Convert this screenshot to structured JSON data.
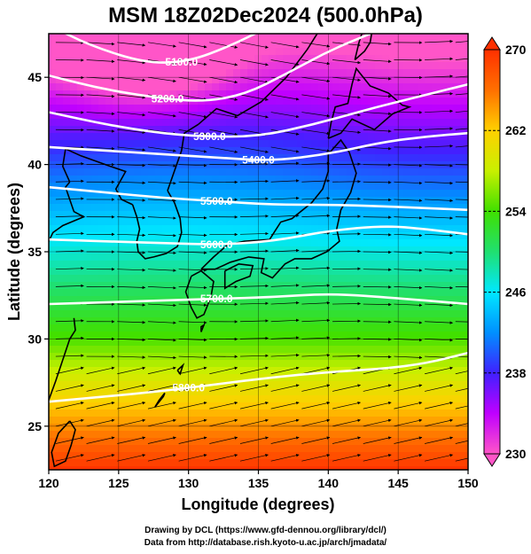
{
  "title": "MSM 18Z02Dec2024 (500.0hPa)",
  "chart_data": {
    "type": "map",
    "title": "MSM 18Z02Dec2024 (500.0hPa)",
    "xlabel": "Longitude (degrees)",
    "ylabel": "Latitude  (degrees)",
    "xlim": [
      120,
      150
    ],
    "ylim": [
      22.5,
      47.5
    ],
    "x_ticks": [
      120,
      125,
      130,
      135,
      140,
      145,
      150
    ],
    "y_ticks": [
      25,
      30,
      35,
      40,
      45
    ],
    "grid": true,
    "colorbar": {
      "range": [
        230,
        270
      ],
      "tick_values": [
        230,
        238,
        246,
        254,
        262,
        270
      ],
      "tick_labels": [
        "230",
        "238",
        "246",
        "254",
        "262",
        "270"
      ],
      "colors": [
        "#ff55c8",
        "#c000ff",
        "#4020ff",
        "#0090ff",
        "#00e8ff",
        "#20e070",
        "#40e000",
        "#c8f000",
        "#ffd000",
        "#ff7000",
        "#ff3000"
      ]
    },
    "contours": [
      {
        "value": 5100.0,
        "label": "5100.0",
        "points": [
          [
            120,
            48.0
          ],
          [
            123,
            46.8
          ],
          [
            127,
            45.8
          ],
          [
            130,
            45.9
          ],
          [
            133,
            46.8
          ],
          [
            136,
            48.0
          ]
        ]
      },
      {
        "value": 5200.0,
        "label": "5200.0",
        "points": [
          [
            120,
            45.1
          ],
          [
            124,
            44.3
          ],
          [
            128,
            43.8
          ],
          [
            131,
            43.6
          ],
          [
            134,
            44.0
          ],
          [
            137,
            45.2
          ],
          [
            140,
            46.5
          ],
          [
            143,
            47.5
          ]
        ]
      },
      {
        "value": 5300.0,
        "label": "5300.0",
        "points": [
          [
            120,
            43.0
          ],
          [
            124,
            42.3
          ],
          [
            128,
            41.8
          ],
          [
            131,
            41.6
          ],
          [
            135,
            41.6
          ],
          [
            139,
            42.3
          ],
          [
            143,
            43.2
          ],
          [
            147,
            44.0
          ],
          [
            150,
            44.6
          ]
        ]
      },
      {
        "value": 5400.0,
        "label": "5400.0",
        "points": [
          [
            120,
            41.0
          ],
          [
            124,
            40.8
          ],
          [
            128,
            40.6
          ],
          [
            132,
            40.4
          ],
          [
            136,
            40.2
          ],
          [
            140,
            40.6
          ],
          [
            144,
            41.3
          ],
          [
            147,
            41.6
          ],
          [
            150,
            41.8
          ]
        ]
      },
      {
        "value": 5500.0,
        "label": "5500.0",
        "points": [
          [
            120,
            38.7
          ],
          [
            124,
            38.4
          ],
          [
            128,
            38.1
          ],
          [
            132,
            37.9
          ],
          [
            136,
            37.7
          ],
          [
            140,
            37.7
          ],
          [
            144,
            37.6
          ],
          [
            147,
            37.5
          ],
          [
            150,
            37.4
          ]
        ]
      },
      {
        "value": 5600.0,
        "label": "5600.0",
        "points": [
          [
            120,
            35.7
          ],
          [
            124,
            35.6
          ],
          [
            128,
            35.5
          ],
          [
            132,
            35.4
          ],
          [
            136,
            35.6
          ],
          [
            140,
            36.2
          ],
          [
            144,
            36.5
          ],
          [
            147,
            36.3
          ],
          [
            150,
            36.0
          ]
        ]
      },
      {
        "value": 5700.0,
        "label": "5700.0",
        "points": [
          [
            120,
            32.0
          ],
          [
            124,
            32.1
          ],
          [
            128,
            32.2
          ],
          [
            132,
            32.3
          ],
          [
            136,
            32.4
          ],
          [
            140,
            32.6
          ],
          [
            144,
            32.4
          ],
          [
            150,
            32.0
          ]
        ]
      },
      {
        "value": 5800.0,
        "label": "5800.0",
        "points": [
          [
            120,
            26.4
          ],
          [
            124,
            26.7
          ],
          [
            128,
            27.0
          ],
          [
            132,
            27.4
          ],
          [
            136,
            27.8
          ],
          [
            140,
            28.1
          ],
          [
            144,
            28.3
          ],
          [
            147,
            28.6
          ],
          [
            150,
            29.2
          ]
        ]
      }
    ],
    "coastlines": [
      {
        "name": "korea",
        "points": [
          [
            126.0,
            37.7
          ],
          [
            126.3,
            37.0
          ],
          [
            126.5,
            36.3
          ],
          [
            126.3,
            35.6
          ],
          [
            126.4,
            35.0
          ],
          [
            126.9,
            34.6
          ],
          [
            127.5,
            34.7
          ],
          [
            128.4,
            34.9
          ],
          [
            129.2,
            35.3
          ],
          [
            129.5,
            36.1
          ],
          [
            129.4,
            36.9
          ],
          [
            129.0,
            37.8
          ],
          [
            128.5,
            38.5
          ]
        ]
      },
      {
        "name": "china-east",
        "points": [
          [
            121.5,
            39.0
          ],
          [
            121.2,
            38.7
          ],
          [
            121.8,
            37.3
          ],
          [
            122.5,
            37.0
          ],
          [
            121.0,
            36.5
          ],
          [
            120.3,
            36.1
          ],
          [
            120.0,
            35.6
          ]
        ]
      },
      {
        "name": "china-coast-south",
        "points": [
          [
            121.8,
            31.2
          ],
          [
            121.9,
            30.5
          ],
          [
            121.5,
            30.0
          ],
          [
            121.0,
            28.8
          ],
          [
            120.5,
            27.6
          ],
          [
            120.0,
            26.5
          ]
        ]
      },
      {
        "name": "taiwan",
        "points": [
          [
            121.5,
            25.3
          ],
          [
            121.9,
            24.8
          ],
          [
            121.6,
            23.9
          ],
          [
            121.2,
            23.0
          ],
          [
            120.4,
            22.7
          ],
          [
            120.2,
            23.5
          ],
          [
            120.7,
            24.6
          ],
          [
            121.5,
            25.3
          ]
        ]
      },
      {
        "name": "kyushu",
        "points": [
          [
            130.2,
            33.6
          ],
          [
            130.9,
            33.9
          ],
          [
            131.8,
            33.3
          ],
          [
            131.6,
            32.4
          ],
          [
            131.1,
            31.4
          ],
          [
            130.6,
            31.2
          ],
          [
            130.2,
            31.8
          ],
          [
            129.8,
            32.7
          ],
          [
            130.2,
            33.6
          ]
        ]
      },
      {
        "name": "shikoku",
        "points": [
          [
            132.6,
            33.9
          ],
          [
            133.6,
            34.3
          ],
          [
            134.6,
            34.2
          ],
          [
            134.4,
            33.6
          ],
          [
            133.4,
            33.3
          ],
          [
            132.6,
            32.9
          ],
          [
            132.6,
            33.9
          ]
        ]
      },
      {
        "name": "honshu",
        "points": [
          [
            130.9,
            34.0
          ],
          [
            131.8,
            34.7
          ],
          [
            132.8,
            35.4
          ],
          [
            134.0,
            35.6
          ],
          [
            135.8,
            35.7
          ],
          [
            136.6,
            36.7
          ],
          [
            137.4,
            36.9
          ],
          [
            138.8,
            37.8
          ],
          [
            139.6,
            38.6
          ],
          [
            140.0,
            39.6
          ],
          [
            140.0,
            40.6
          ],
          [
            140.9,
            41.4
          ],
          [
            141.5,
            40.7
          ],
          [
            142.0,
            39.5
          ],
          [
            141.6,
            38.4
          ],
          [
            140.9,
            37.4
          ],
          [
            140.6,
            36.3
          ],
          [
            140.8,
            35.6
          ],
          [
            139.9,
            35.0
          ],
          [
            138.8,
            34.6
          ],
          [
            137.6,
            34.6
          ],
          [
            136.9,
            34.3
          ],
          [
            136.0,
            33.5
          ],
          [
            135.2,
            33.8
          ],
          [
            135.4,
            34.6
          ],
          [
            134.3,
            34.7
          ],
          [
            133.0,
            34.4
          ],
          [
            131.9,
            34.0
          ],
          [
            130.9,
            34.0
          ]
        ]
      },
      {
        "name": "hokkaido",
        "points": [
          [
            140.0,
            41.5
          ],
          [
            140.2,
            42.4
          ],
          [
            140.5,
            43.3
          ],
          [
            141.4,
            43.5
          ],
          [
            141.7,
            44.6
          ],
          [
            142.0,
            45.5
          ],
          [
            143.0,
            44.5
          ],
          [
            144.3,
            44.1
          ],
          [
            145.3,
            43.4
          ],
          [
            145.8,
            43.3
          ],
          [
            144.6,
            42.9
          ],
          [
            143.3,
            42.0
          ],
          [
            141.7,
            42.6
          ],
          [
            140.9,
            41.8
          ],
          [
            140.0,
            41.5
          ]
        ]
      },
      {
        "name": "sakhalin",
        "points": [
          [
            141.9,
            46.0
          ],
          [
            142.2,
            47.0
          ],
          [
            142.6,
            48.0
          ],
          [
            143.2,
            48.0
          ],
          [
            143.0,
            47.0
          ],
          [
            142.6,
            46.5
          ],
          [
            141.9,
            46.0
          ]
        ]
      },
      {
        "name": "russia-coast",
        "points": [
          [
            130.7,
            42.3
          ],
          [
            132.0,
            43.2
          ],
          [
            133.5,
            42.8
          ],
          [
            135.2,
            43.6
          ],
          [
            137.0,
            45.0
          ],
          [
            138.5,
            46.6
          ],
          [
            139.6,
            48.0
          ]
        ]
      },
      {
        "name": "nk-east",
        "points": [
          [
            128.5,
            38.5
          ],
          [
            129.5,
            40.8
          ],
          [
            129.7,
            41.8
          ],
          [
            130.7,
            42.3
          ]
        ]
      },
      {
        "name": "nk-west",
        "points": [
          [
            126.0,
            37.7
          ],
          [
            125.2,
            38.0
          ],
          [
            124.8,
            38.6
          ],
          [
            125.5,
            39.6
          ],
          [
            124.4,
            39.9
          ],
          [
            122.3,
            40.5
          ],
          [
            121.2,
            40.9
          ],
          [
            121.0,
            39.9
          ],
          [
            121.5,
            39.0
          ]
        ]
      },
      {
        "name": "okinawa",
        "points": [
          [
            127.6,
            26.1
          ],
          [
            128.2,
            26.7
          ],
          [
            128.3,
            26.9
          ],
          [
            127.9,
            26.5
          ],
          [
            127.6,
            26.1
          ]
        ]
      },
      {
        "name": "amami",
        "points": [
          [
            129.2,
            28.2
          ],
          [
            129.6,
            28.5
          ],
          [
            129.4,
            28.0
          ],
          [
            129.2,
            28.2
          ]
        ]
      },
      {
        "name": "tanegashima",
        "points": [
          [
            130.9,
            30.4
          ],
          [
            131.1,
            30.8
          ],
          [
            130.9,
            30.7
          ],
          [
            130.9,
            30.4
          ]
        ]
      }
    ]
  },
  "credits": {
    "line1": "Drawing by DCL (https://www.gfd-dennou.org/library/dcl/)",
    "line2": "Data from http://database.rish.kyoto-u.ac.jp/arch/jmadata/"
  }
}
